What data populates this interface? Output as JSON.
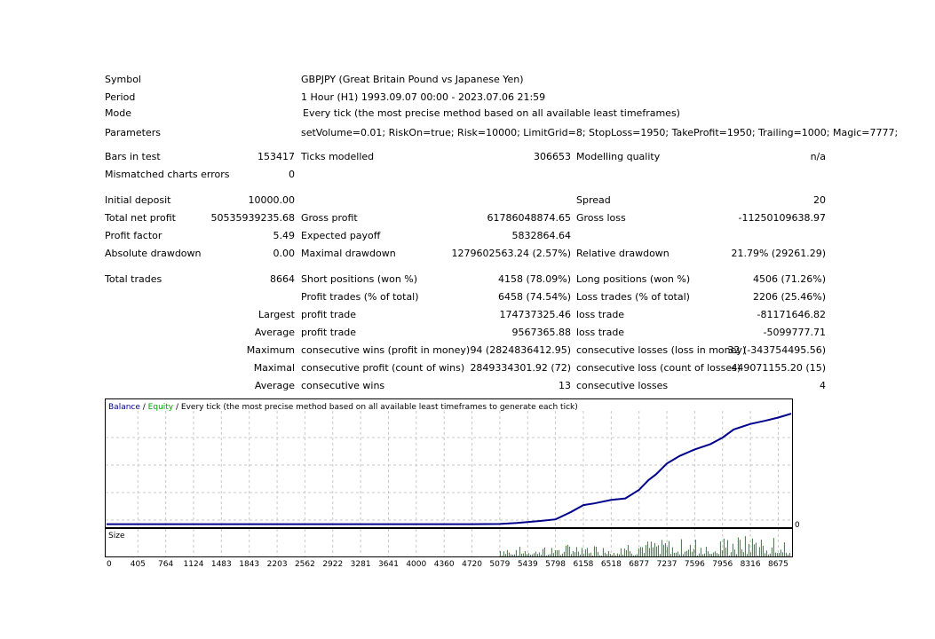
{
  "report": {
    "symbol_label": "Symbol",
    "symbol_value": "GBPJPY (Great Britain Pound vs Japanese Yen)",
    "period_label": "Period",
    "period_value": "1 Hour (H1) 1993.09.07 00:00 - 2023.07.06 21:59",
    "mode_label": "Mode",
    "mode_value": "Every tick (the most precise method based on all available least timeframes)",
    "parameters_label": "Parameters",
    "parameters_value": "setVolume=0.01; RiskOn=true; Risk=10000; LimitGrid=8; StopLoss=1950; TakeProfit=1950; Trailing=1000; Magic=7777;",
    "bars_label": "Bars in test",
    "bars_value": "153417",
    "ticks_label": "Ticks modelled",
    "ticks_value": "306653",
    "quality_label": "Modelling quality",
    "quality_value": "n/a",
    "mismatch_label": "Mismatched charts errors",
    "mismatch_value": "0",
    "deposit_label": "Initial deposit",
    "deposit_value": "10000.00",
    "spread_label": "Spread",
    "spread_value": "20",
    "netprofit_label": "Total net profit",
    "netprofit_value": "50535939235.68",
    "grossprofit_label": "Gross profit",
    "grossprofit_value": "61786048874.65",
    "grossloss_label": "Gross loss",
    "grossloss_value": "-11250109638.97",
    "pfactor_label": "Profit factor",
    "pfactor_value": "5.49",
    "payoff_label": "Expected payoff",
    "payoff_value": "5832864.64",
    "absdd_label": "Absolute drawdown",
    "absdd_value": "0.00",
    "maxdd_label": "Maximal drawdown",
    "maxdd_value": "1279602563.24 (2.57%)",
    "reldd_label": "Relative drawdown",
    "reldd_value": "21.79% (29261.29)",
    "trades_label": "Total trades",
    "trades_value": "8664",
    "short_label": "Short positions (won %)",
    "short_value": "4158 (78.09%)",
    "long_label": "Long positions (won %)",
    "long_value": "4506 (71.26%)",
    "ptrades_label": "Profit trades (% of total)",
    "ptrades_value": "6458 (74.54%)",
    "ltrades_label": "Loss trades (% of total)",
    "ltrades_value": "2206 (25.46%)",
    "largest_label": "Largest",
    "largest_profit_label": "profit trade",
    "largest_profit_value": "174737325.46",
    "largest_loss_label": "loss trade",
    "largest_loss_value": "-81171646.82",
    "average_label": "Average",
    "average_profit_label": "profit trade",
    "average_profit_value": "9567365.88",
    "average_loss_label": "loss trade",
    "average_loss_value": "-5099777.71",
    "maximum_label": "Maximum",
    "max_cwins_label": "consecutive wins (profit in money)",
    "max_cwins_value": "94 (2824836412.95)",
    "max_closs_label": "consecutive losses (loss in money)",
    "max_closs_value": "32 (-343754495.56)",
    "maximal_label": "Maximal",
    "maximal_cprofit_label": "consecutive profit (count of wins)",
    "maximal_cprofit_value": "2849334301.92 (72)",
    "maximal_closs_label": "consecutive loss (count of losses)",
    "maximal_closs_value": "-449071155.20 (15)",
    "average2_label": "Average",
    "avg_cwins_label": "consecutive wins",
    "avg_cwins_value": "13",
    "avg_closs_label": "consecutive losses",
    "avg_closs_value": "4"
  },
  "chart_header": {
    "balance": "Balance",
    "separator": " / ",
    "equity": "Equity",
    "description": " / Every tick (the most precise method based on all available least timeframes to generate each tick)"
  },
  "colors": {
    "balance": "#00008b",
    "equity": "#00a000",
    "size_bars": "#00a000",
    "grid": "#c8c8c8"
  },
  "chart_data": {
    "type": "line",
    "title": "Balance / Equity / Every tick (the most precise method based on all available least timeframes to generate each tick)",
    "x_ticks": [
      "0",
      "405",
      "764",
      "1124",
      "1483",
      "1843",
      "2203",
      "2562",
      "2922",
      "3281",
      "3641",
      "4000",
      "4360",
      "4720",
      "5079",
      "5439",
      "5798",
      "6158",
      "6518",
      "6877",
      "7237",
      "7596",
      "7956",
      "8316",
      "8675"
    ],
    "xlim": [
      0,
      8842
    ],
    "y_tick_label": "0",
    "series": [
      {
        "name": "Balance",
        "x": [
          0,
          1000,
          2000,
          3000,
          4000,
          4720,
          5079,
          5300,
          5600,
          5800,
          6000,
          6158,
          6300,
          6518,
          6700,
          6877,
          7000,
          7100,
          7237,
          7400,
          7596,
          7800,
          7956,
          8100,
          8316,
          8500,
          8675,
          8842
        ],
        "y": [
          0.03,
          0.03,
          0.03,
          0.03,
          0.03,
          0.03,
          0.05,
          0.1,
          0.28,
          0.55,
          1.05,
          1.75,
          1.95,
          2.1,
          2.4,
          3.1,
          3.9,
          4.6,
          5.4,
          6.1,
          6.8,
          7.1,
          7.8,
          8.55,
          8.9,
          9.35,
          9.55,
          9.85
        ]
      }
    ],
    "size_panel": {
      "label": "Size",
      "type": "bar",
      "active_from_x": 5079
    },
    "grid": true
  }
}
